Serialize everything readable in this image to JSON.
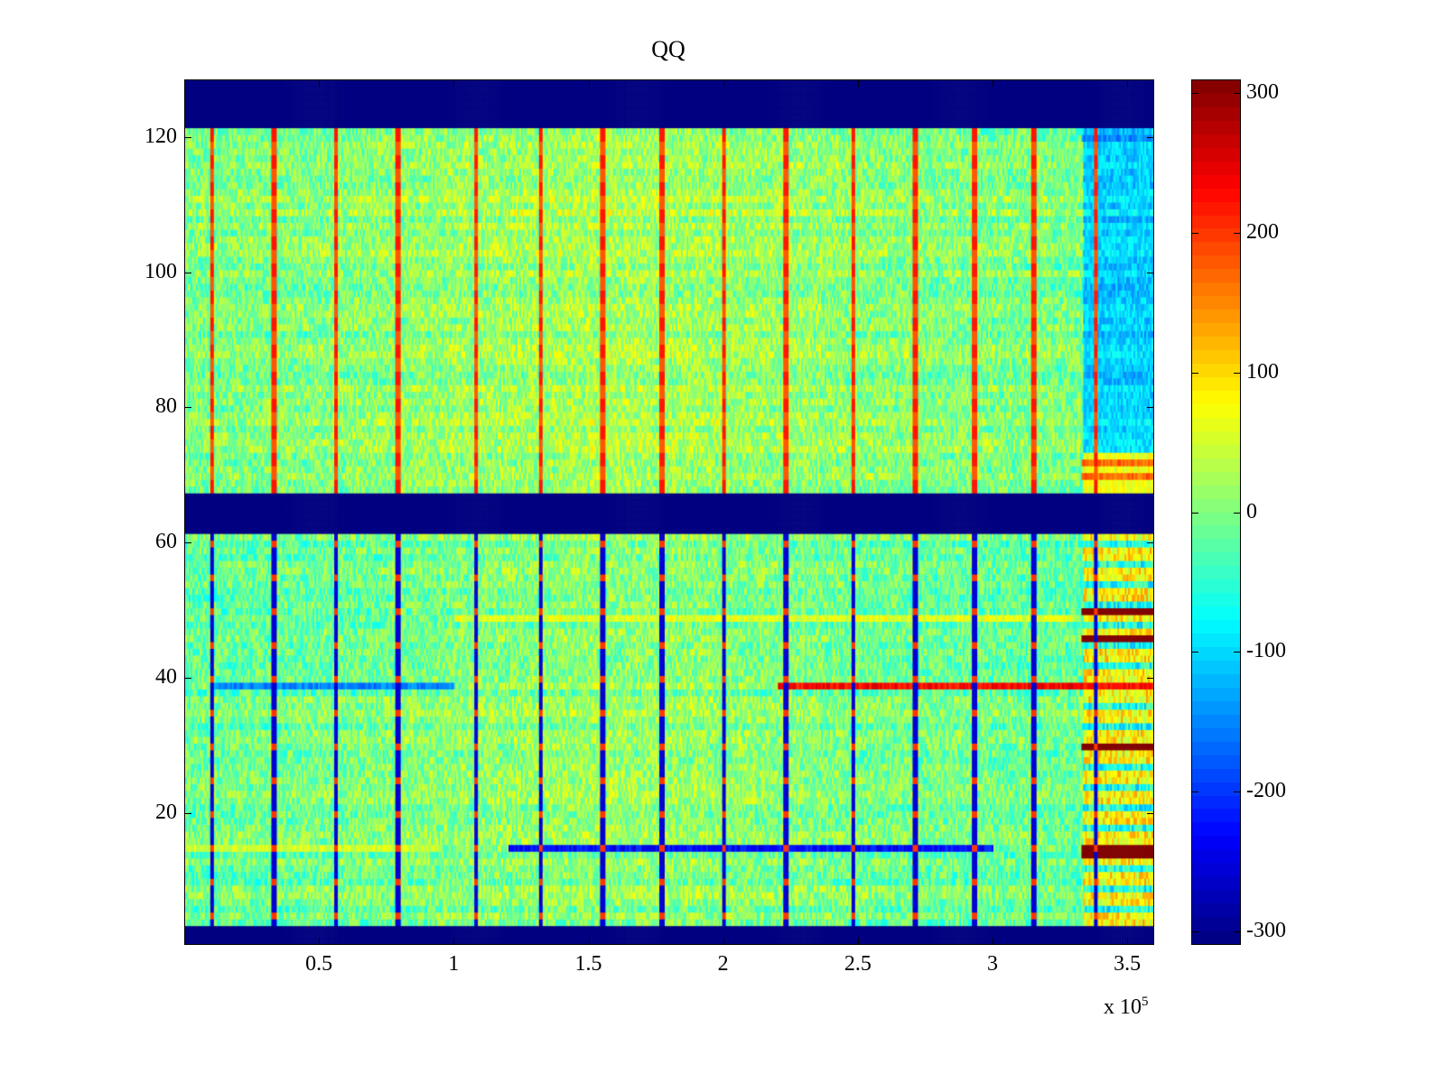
{
  "chart_data": {
    "type": "heatmap",
    "title": "QQ",
    "xlabel": "",
    "ylabel": "",
    "x_multiplier_label": "x 10",
    "x_multiplier_exponent": "5",
    "xlim": [
      0,
      360000
    ],
    "ylim": [
      0.5,
      128.5
    ],
    "x_ticks": [
      0.5,
      1,
      1.5,
      2,
      2.5,
      3,
      3.5
    ],
    "x_tick_labels": [
      "0.5",
      "1",
      "1.5",
      "2",
      "2.5",
      "3",
      "3.5"
    ],
    "y_ticks": [
      20,
      40,
      60,
      80,
      100,
      120
    ],
    "y_tick_labels": [
      "20",
      "40",
      "60",
      "80",
      "100",
      "120"
    ],
    "colormap": "jet",
    "clim": [
      -310,
      310
    ],
    "colorbar_ticks": [
      -300,
      -200,
      -100,
      0,
      100,
      200,
      300
    ],
    "colorbar_tick_labels": [
      "-300",
      "-200",
      "-100",
      "0",
      "100",
      "200",
      "300"
    ],
    "rows": 128,
    "background_value_range": [
      -80,
      80
    ],
    "empty_rows": [
      [
        1,
        3
      ],
      [
        62,
        67
      ],
      [
        122,
        128
      ]
    ],
    "vertical_stripe_x": [
      10000,
      33000,
      56000,
      79000,
      108000,
      132000,
      155000,
      177000,
      200000,
      223000,
      248000,
      271000,
      293000,
      315000,
      338000
    ],
    "features": [
      {
        "row": 39,
        "x_range": [
          10000,
          100000
        ],
        "value": -120
      },
      {
        "row": 39,
        "x_range": [
          220000,
          360000
        ],
        "value": 260
      },
      {
        "row": 15,
        "x_range": [
          0,
          95000
        ],
        "value": 80
      },
      {
        "row": 15,
        "x_range": [
          120000,
          300000
        ],
        "value": -200
      },
      {
        "row": 15,
        "x_range": [
          333000,
          360000
        ],
        "value": 310
      },
      {
        "row": 14,
        "x_range": [
          333000,
          360000
        ],
        "value": 310
      },
      {
        "row": 50,
        "x_range": [
          333000,
          360000
        ],
        "value": 310
      },
      {
        "row": 46,
        "x_range": [
          333000,
          360000
        ],
        "value": 310
      },
      {
        "row": 30,
        "x_range": [
          333000,
          360000
        ],
        "value": 310
      },
      {
        "row": 49,
        "x_range": [
          100000,
          330000
        ],
        "value": 90
      },
      {
        "row": 70,
        "x_range": [
          333000,
          360000
        ],
        "value": 200
      },
      {
        "row": 72,
        "x_range": [
          333000,
          360000
        ],
        "value": 200
      },
      {
        "row": 120,
        "x_range": [
          333000,
          360000
        ],
        "value": -120
      }
    ]
  }
}
